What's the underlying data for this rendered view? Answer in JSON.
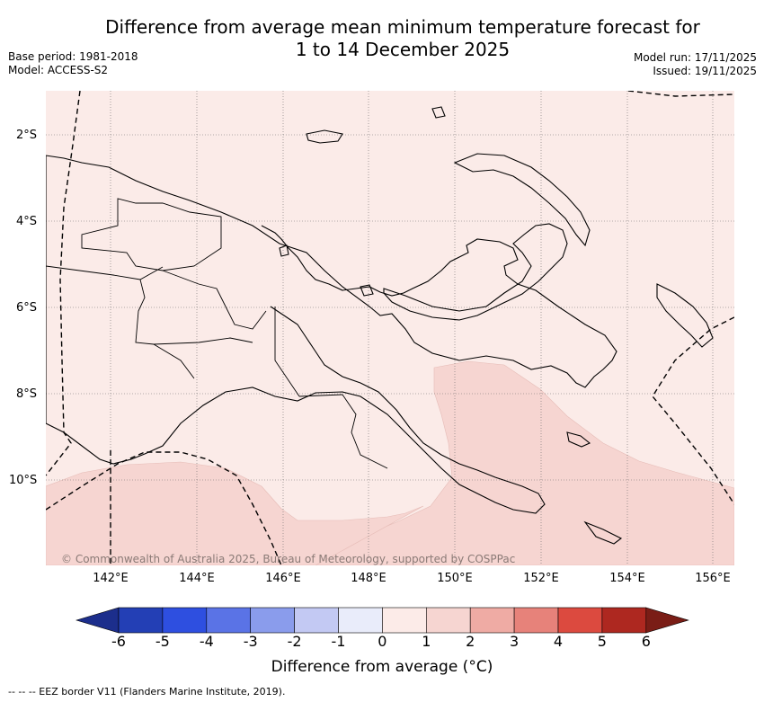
{
  "title": {
    "line1": "Difference from average mean minimum temperature forecast for",
    "line2": "1 to 14 December 2025"
  },
  "meta_left": {
    "base_period": "Base period: 1981-2018",
    "model": "Model: ACCESS-S2"
  },
  "meta_right": {
    "model_run": "Model run: 17/11/2025",
    "issued": "Issued: 19/11/2025"
  },
  "map": {
    "latitude_labels": [
      "2°S",
      "4°S",
      "6°S",
      "8°S",
      "10°S"
    ],
    "longitude_labels": [
      "142°E",
      "144°E",
      "146°E",
      "148°E",
      "150°E",
      "152°E",
      "154°E",
      "156°E"
    ],
    "credit": "© Commonwealth of Australia 2025, Bureau of Meteorology, supported by COSPPac",
    "region": "Papua New Guinea",
    "shading": [
      {
        "category": "0 to 1",
        "color": "#fbebe8",
        "description": "most of region"
      },
      {
        "category": "1 to 2",
        "color": "#f6d5d1",
        "description": "southeast & southwest seas"
      }
    ]
  },
  "colorbar": {
    "tick_labels": [
      "-6",
      "-5",
      "-4",
      "-3",
      "-2",
      "-1",
      "0",
      "1",
      "2",
      "3",
      "4",
      "5",
      "6"
    ],
    "colors": [
      "#1c2e8c",
      "#233fb5",
      "#2e4fe0",
      "#5a73e6",
      "#8a9cec",
      "#c3c9f3",
      "#e9ecfa",
      "#fcebe8",
      "#f6d5d1",
      "#efaba4",
      "#e7827a",
      "#dc4a3f",
      "#ae2820",
      "#7a1d16"
    ],
    "title": "Difference from average (",
    "unit": "°C",
    "title_end": ")"
  },
  "footer": {
    "legend": "-- -- -- EEZ border V11 (Flanders Marine Institute, 2019)."
  }
}
